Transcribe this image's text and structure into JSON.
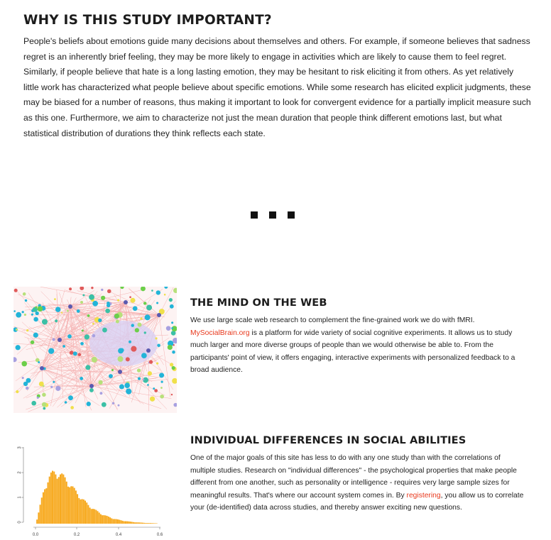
{
  "importance": {
    "heading": "WHY IS THIS STUDY IMPORTANT?",
    "body": "People's beliefs about emotions guide many decisions about themselves and others. For example, if someone believes that sadness regret is an inherently brief feeling, they may be more likely to engage in activities which are likely to cause them to feel regret. Similarly, if people believe that hate is a long lasting emotion, they may be hesitant to risk eliciting it from others. As yet relatively little work has characterized what people believe about specific emotions. While some research has elicited explicit judgments, these may be biased for a number of reasons, thus making it important to look for convergent evidence for a partially implicit measure such as this one. Furthermore, we aim to characterize not just the mean duration that people think different emotions last, but what statistical distribution of durations they think reflects each state."
  },
  "mind_on_web": {
    "heading": "THE MIND ON THE WEB",
    "text_before_link": "We use large scale web research to complement the fine-grained work we do with fMRI. ",
    "link_label": "MySocialBrain.org",
    "text_after_link": " is a platform for wide variety of social cognitive experiments. It allows us to study much larger and more diverse groups of people than we would otherwise be able to. From the participants' point of view, it offers engaging, interactive experiments with personalized feedback to a broad audience."
  },
  "individual_differences": {
    "heading": "INDIVIDUAL DIFFERENCES IN SOCIAL ABILITIES",
    "text_before_link": "One of the major goals of this site has less to do with any one study than with the correlations of multiple studies. Research on \"individual differences\" - the psychological properties that make people different from one another, such as personality or intelligence - requires very large sample sizes for meaningful results. That's where our account system comes in. By ",
    "link_label": "registering",
    "text_after_link": ", you allow us to correlate your (de-identified) data across studies, and thereby answer exciting new questions."
  },
  "histogram": {
    "x_ticks": [
      "0.0",
      "0.2",
      "0.4",
      "0.6"
    ],
    "y_ticks": [
      "0",
      "1",
      "2",
      "3"
    ],
    "bar_color": "#f7a81b"
  },
  "colors": {
    "link": "#e8391d"
  }
}
